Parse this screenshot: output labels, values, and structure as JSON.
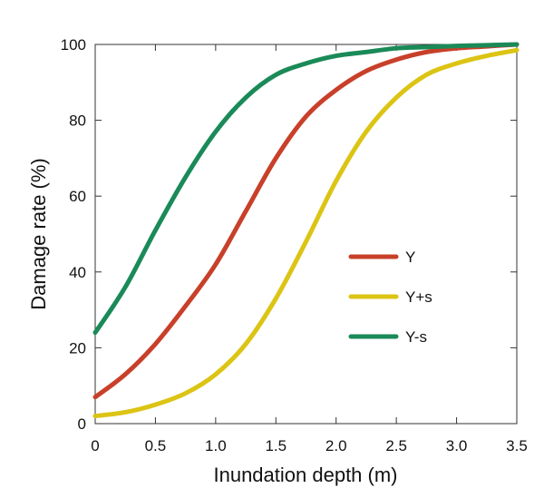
{
  "chart_data": {
    "type": "line",
    "xlabel": "Inundation depth (m)",
    "ylabel": "Damage rate (%)",
    "xlim": [
      0,
      3.5
    ],
    "ylim": [
      0,
      100
    ],
    "xticks": [
      "0",
      "0.5",
      "1.0",
      "1.5",
      "2.0",
      "2.5",
      "3.0",
      "3.5"
    ],
    "yticks": [
      "0",
      "20",
      "40",
      "60",
      "80",
      "100"
    ],
    "grid": false,
    "legend_position": "center-right",
    "series": [
      {
        "name": "Y",
        "color": "#c8402a",
        "x": [
          0,
          0.25,
          0.5,
          0.75,
          1.0,
          1.25,
          1.5,
          1.75,
          2.0,
          2.25,
          2.5,
          2.75,
          3.0,
          3.25,
          3.5
        ],
        "y": [
          7,
          13,
          21,
          31,
          42,
          56,
          70,
          81,
          88,
          93,
          96,
          98,
          99,
          99.5,
          100
        ]
      },
      {
        "name": "Y+s",
        "color": "#dcc414",
        "x": [
          0,
          0.25,
          0.5,
          0.75,
          1.0,
          1.25,
          1.5,
          1.75,
          2.0,
          2.25,
          2.5,
          2.75,
          3.0,
          3.25,
          3.5
        ],
        "y": [
          2,
          3,
          5,
          8,
          13,
          21,
          33,
          48,
          64,
          77,
          86,
          92,
          95,
          97,
          98.5
        ]
      },
      {
        "name": "Y-s",
        "color": "#1a8a58",
        "x": [
          0,
          0.25,
          0.5,
          0.75,
          1.0,
          1.25,
          1.5,
          1.75,
          2.0,
          2.25,
          2.5,
          2.75,
          3.0,
          3.25,
          3.5
        ],
        "y": [
          24,
          36,
          51,
          65,
          77,
          86,
          92,
          95,
          97,
          98,
          99,
          99.3,
          99.6,
          99.8,
          100
        ]
      }
    ]
  }
}
